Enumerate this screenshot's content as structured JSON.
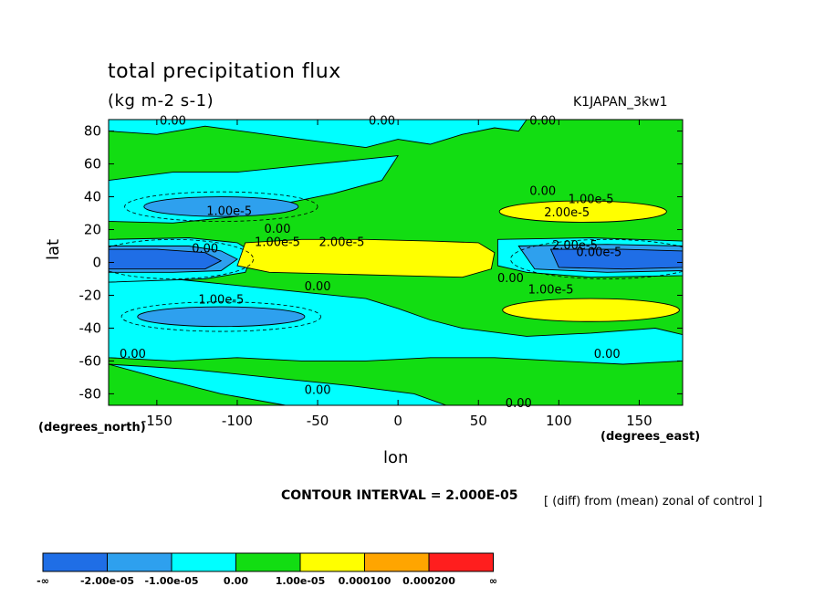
{
  "chart_data": {
    "type": "heatmap",
    "title": "total precipitation flux",
    "subtitle": "(kg m-2 s-1)",
    "run_id": "K1JAPAN_3kw1",
    "xlabel": "lon",
    "ylabel": "lat",
    "xunits_label": "(degrees_east)",
    "yunits_label": "(degrees_north)",
    "contour_interval_text": "CONTOUR INTERVAL = 2.000E-05",
    "note": "[ (diff) from (mean) zonal of control ]",
    "xlim": [
      -180,
      177
    ],
    "ylim": [
      -87,
      87
    ],
    "x_ticks": [
      -150,
      -100,
      -50,
      0,
      50,
      100,
      150
    ],
    "x_tick_labels": [
      "-150",
      "-100",
      "-50",
      "0",
      "50",
      "100",
      "150"
    ],
    "y_ticks": [
      80,
      60,
      40,
      20,
      0,
      -20,
      -40,
      -60,
      -80
    ],
    "y_tick_labels": [
      "80",
      "60",
      "40",
      "20",
      "0",
      "-20",
      "-40",
      "-60",
      "-80"
    ],
    "legend": {
      "placement": "bottom",
      "colors": [
        "#1f6ee6",
        "#2ea0ee",
        "#00ffff",
        "#12dd12",
        "#ffff00",
        "#ffa500",
        "#ff1e1e"
      ],
      "labels": [
        "-∞",
        "-2.00e-05",
        "-1.00e-05",
        "0.00",
        "1.00e-05",
        "0.000100",
        "0.000200",
        "∞"
      ]
    },
    "contour_labels": [
      {
        "text": "0.00",
        "lon": -140,
        "lat": 84
      },
      {
        "text": "0.00",
        "lon": -10,
        "lat": 84
      },
      {
        "text": "0.00",
        "lon": 90,
        "lat": 84
      },
      {
        "text": "1.00e-5",
        "lon": -105,
        "lat": 29
      },
      {
        "text": "0.00",
        "lon": 90,
        "lat": 41
      },
      {
        "text": "1.00e-5",
        "lon": 120,
        "lat": 36
      },
      {
        "text": "2.00e-5",
        "lon": 105,
        "lat": 28
      },
      {
        "text": "0.00",
        "lon": -75,
        "lat": 18
      },
      {
        "text": "1.00e-5",
        "lon": -75,
        "lat": 10
      },
      {
        "text": "2.00e-5",
        "lon": -35,
        "lat": 10
      },
      {
        "text": "0.00",
        "lon": -120,
        "lat": 6
      },
      {
        "text": "2.00e-5",
        "lon": 110,
        "lat": 8
      },
      {
        "text": "0.00e-5",
        "lon": 125,
        "lat": 4
      },
      {
        "text": "0.00",
        "lon": 70,
        "lat": -12
      },
      {
        "text": "0.00",
        "lon": -50,
        "lat": -17
      },
      {
        "text": "1.00e-5",
        "lon": 95,
        "lat": -19
      },
      {
        "text": "1.00e-5",
        "lon": -110,
        "lat": -25
      },
      {
        "text": "0.00",
        "lon": -165,
        "lat": -58
      },
      {
        "text": "0.00",
        "lon": 130,
        "lat": -58
      },
      {
        "text": "0.00",
        "lon": -50,
        "lat": -80
      },
      {
        "text": "0.00",
        "lon": 75,
        "lat": -88
      }
    ]
  }
}
